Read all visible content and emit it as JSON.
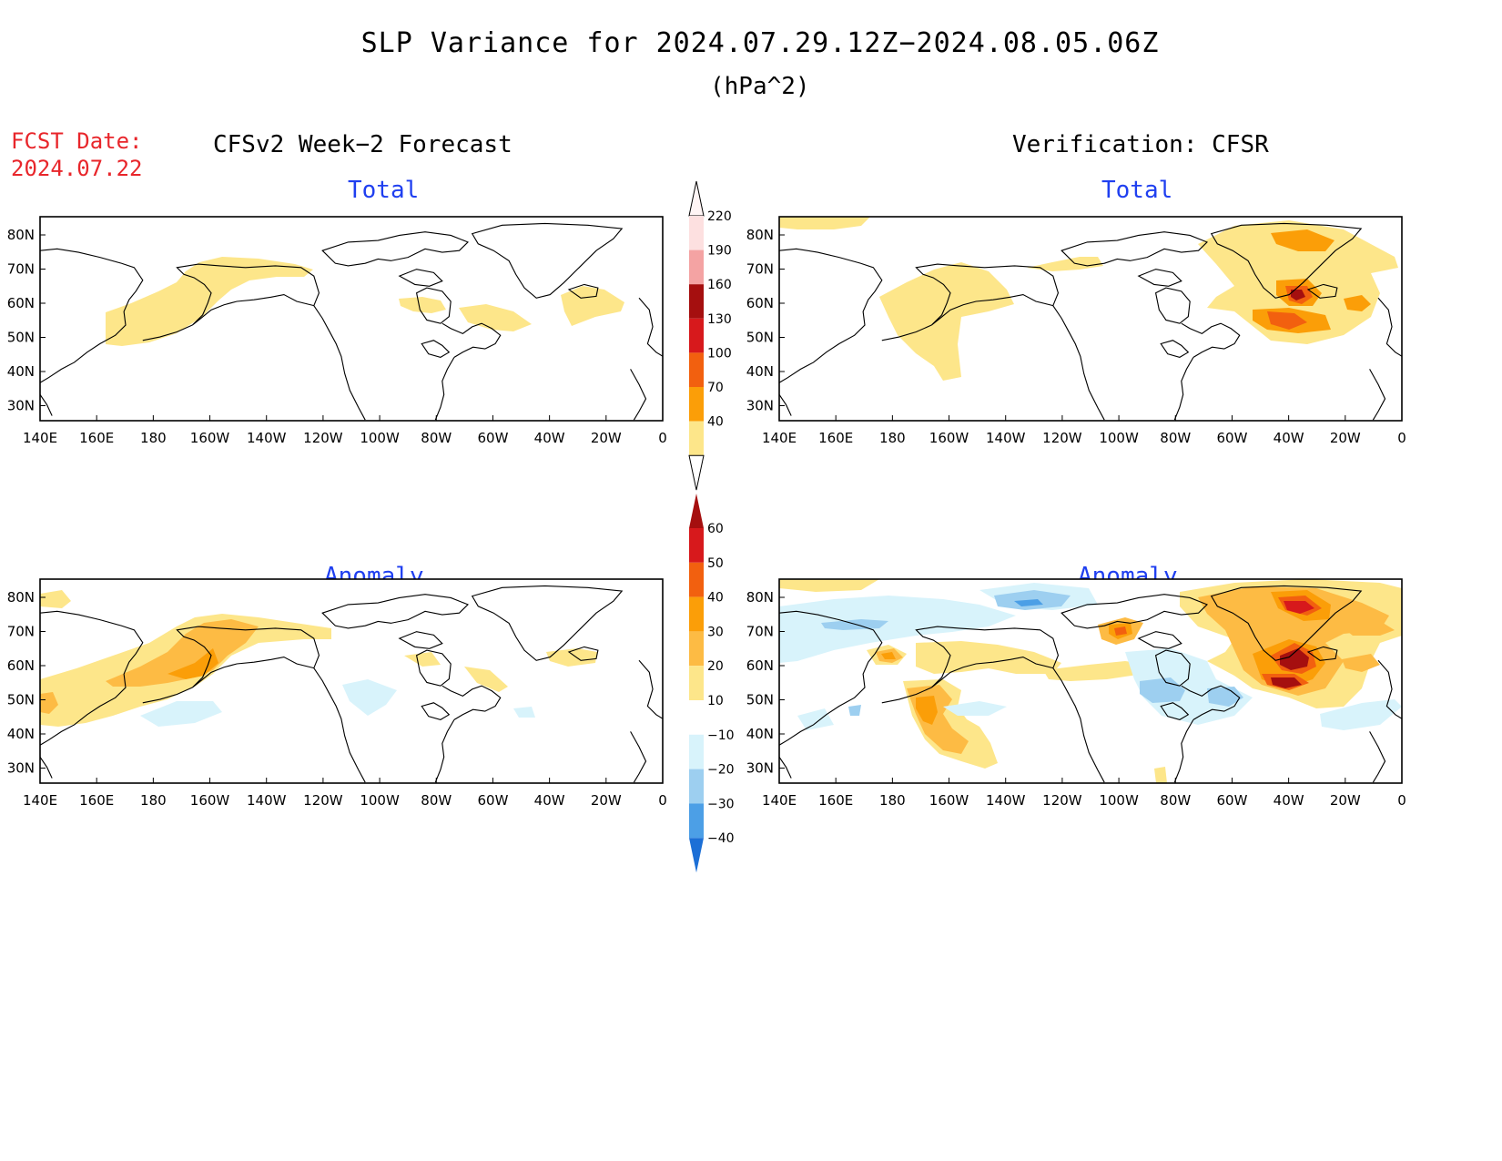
{
  "title": "SLP Variance for 2024.07.29.12Z−2024.08.05.06Z",
  "units": "(hPa^2)",
  "fcst_date_label": "FCST Date:",
  "fcst_date_value": "2024.07.22",
  "forecast_header": "CFSv2 Week−2 Forecast",
  "verification_header": "Verification: CFSR",
  "panels": {
    "fcst_total": {
      "title": "Total"
    },
    "verif_total": {
      "title": "Total"
    },
    "fcst_anom": {
      "title": "Anomaly"
    },
    "verif_anom": {
      "title": "Anomaly"
    }
  },
  "axes": {
    "lon_labels": [
      "140E",
      "160E",
      "180",
      "160W",
      "140W",
      "120W",
      "100W",
      "80W",
      "60W",
      "40W",
      "20W",
      "0"
    ],
    "lat_labels": [
      "80N",
      "70N",
      "60N",
      "50N",
      "40N",
      "30N"
    ]
  },
  "colorbar_total": {
    "labels": [
      "220",
      "190",
      "160",
      "130",
      "100",
      "70",
      "40"
    ],
    "colors": [
      "#fde0e0",
      "#f4a3a3",
      "#a50f0f",
      "#d7191c",
      "#f2600f",
      "#fb9e08",
      "#fde68a"
    ]
  },
  "colorbar_anomaly": {
    "labels": [
      "60",
      "50",
      "40",
      "30",
      "20",
      "10",
      "−10",
      "−20",
      "−30",
      "−40"
    ],
    "colors": [
      "#a50f0f",
      "#d7191c",
      "#f2600f",
      "#fb9e08",
      "#fdbb44",
      "#fde68a",
      "#ffffff",
      "#d8f3fb",
      "#9dcff0",
      "#4c9fe6",
      "#1c6fd6"
    ]
  },
  "colors": {
    "title_blue": "#1f3ff0",
    "fcst_red": "#e8262b"
  }
}
